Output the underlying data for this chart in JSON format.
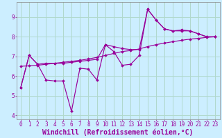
{
  "xlabel": "Windchill (Refroidissement éolien,°C)",
  "background_color": "#cceeff",
  "grid_color": "#aaddcc",
  "line_color": "#990099",
  "ylim": [
    3.8,
    9.75
  ],
  "xlim": [
    -0.5,
    23.5
  ],
  "x": [
    0,
    1,
    2,
    3,
    4,
    5,
    6,
    7,
    8,
    9,
    10,
    11,
    12,
    13,
    14,
    15,
    16,
    17,
    18,
    19,
    20,
    21,
    22,
    23
  ],
  "y_jagged": [
    5.4,
    7.05,
    6.6,
    5.8,
    5.75,
    5.75,
    4.2,
    6.4,
    6.35,
    5.8,
    7.6,
    7.25,
    6.55,
    6.6,
    7.05,
    9.4,
    8.85,
    8.4,
    8.3,
    8.35,
    8.3,
    8.15,
    8.0,
    8.0
  ],
  "y_smooth1": [
    5.4,
    7.05,
    6.6,
    6.65,
    6.65,
    6.65,
    6.7,
    6.75,
    6.8,
    6.85,
    7.6,
    7.5,
    7.4,
    7.35,
    7.35,
    9.4,
    8.85,
    8.4,
    8.3,
    8.3,
    8.3,
    8.15,
    8.0,
    8.0
  ],
  "y_trend": [
    6.5,
    6.52,
    6.55,
    6.6,
    6.65,
    6.7,
    6.75,
    6.8,
    6.87,
    6.95,
    7.05,
    7.15,
    7.25,
    7.3,
    7.38,
    7.5,
    7.6,
    7.68,
    7.75,
    7.82,
    7.88,
    7.92,
    7.97,
    8.0
  ],
  "yticks": [
    4,
    5,
    6,
    7,
    8,
    9
  ],
  "xticks": [
    0,
    1,
    2,
    3,
    4,
    5,
    6,
    7,
    8,
    9,
    10,
    11,
    12,
    13,
    14,
    15,
    16,
    17,
    18,
    19,
    20,
    21,
    22,
    23
  ],
  "tick_fontsize": 5.5,
  "xlabel_fontsize": 7.0
}
